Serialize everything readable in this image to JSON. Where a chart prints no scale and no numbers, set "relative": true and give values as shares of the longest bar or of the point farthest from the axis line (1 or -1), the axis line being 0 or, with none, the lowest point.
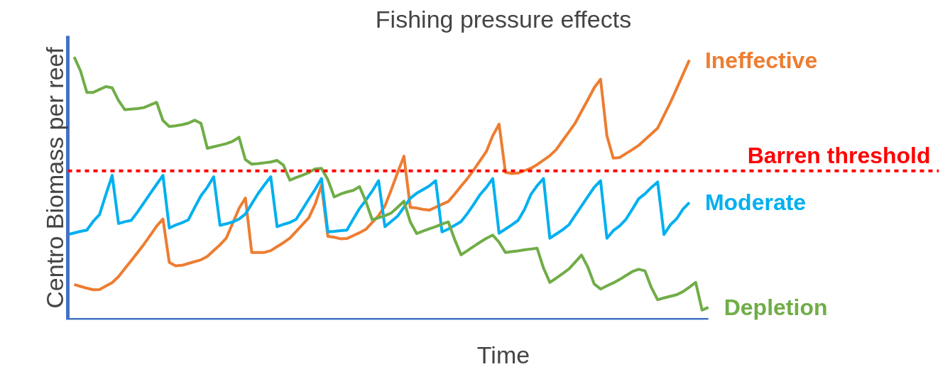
{
  "chart_data": {
    "type": "line",
    "title": "Fishing pressure effects",
    "xlabel": "Time",
    "ylabel": "Centro Biomass per reef",
    "relative": true,
    "categories": [
      null,
      null,
      null,
      null,
      null,
      null,
      null,
      null,
      null,
      null,
      null,
      null,
      null,
      null,
      null,
      null,
      null,
      null,
      null,
      null,
      null,
      null,
      null,
      null,
      null,
      null,
      null,
      null,
      null,
      null,
      null,
      null,
      null,
      null,
      null,
      null,
      null,
      null,
      null,
      null,
      null,
      null,
      null,
      null,
      null,
      null,
      null,
      null,
      null,
      null,
      null,
      null,
      null,
      null,
      null,
      null,
      null,
      null,
      null,
      null,
      null,
      null,
      null,
      null,
      null,
      null,
      null,
      null,
      null,
      null,
      null,
      null,
      null,
      null,
      null,
      null,
      null,
      null,
      null,
      null,
      null,
      null,
      null,
      null,
      null,
      null,
      null,
      null,
      null,
      null,
      null,
      null,
      null,
      null,
      null,
      null,
      null,
      null,
      null,
      null,
      null,
      null
    ],
    "grid": false,
    "marker": "none",
    "line_style": "solid",
    "ref_lines": [
      {
        "axis": "y",
        "value": 0.566,
        "label": "Barren threshold",
        "color": "#ff0000",
        "line_style": "dashed"
      }
    ],
    "series": [
      {
        "name": "Ineffective",
        "color": "#ed7d31",
        "values": [
          null,
          0.134,
          0.127,
          0.12,
          0.114,
          0.115,
          0.128,
          0.141,
          0.164,
          0.195,
          0.225,
          0.256,
          0.287,
          0.321,
          0.356,
          0.383,
          0.218,
          0.205,
          0.207,
          0.214,
          0.221,
          0.228,
          0.241,
          0.263,
          0.285,
          0.311,
          0.367,
          0.424,
          0.463,
          0.256,
          0.256,
          0.256,
          0.263,
          0.278,
          0.293,
          0.31,
          0.336,
          0.362,
          0.388,
          0.44,
          0.512,
          0.317,
          0.314,
          0.308,
          0.309,
          0.32,
          0.331,
          0.344,
          0.37,
          0.396,
          0.433,
          0.494,
          0.56,
          0.622,
          0.427,
          0.425,
          0.42,
          0.417,
          0.428,
          0.439,
          0.45,
          0.478,
          0.508,
          0.537,
          0.57,
          0.605,
          0.64,
          0.7,
          0.744,
          0.561,
          0.556,
          0.558,
          0.567,
          0.576,
          0.59,
          0.607,
          0.624,
          0.647,
          0.681,
          0.714,
          0.748,
          0.793,
          0.837,
          0.883,
          0.915,
          0.7,
          0.615,
          0.617,
          0.632,
          0.647,
          0.663,
          0.685,
          0.707,
          0.729,
          0.777,
          0.826,
          0.879,
          0.934,
          0.988,
          null,
          null,
          null
        ]
      },
      {
        "name": "Moderate",
        "color": "#00b0f0",
        "values": [
          0.324,
          0.33,
          0.336,
          0.341,
          0.374,
          0.4,
          0.476,
          0.549,
          0.366,
          0.373,
          0.378,
          0.41,
          0.445,
          0.48,
          0.515,
          0.549,
          0.349,
          0.36,
          0.369,
          0.38,
          0.427,
          0.472,
          0.504,
          0.544,
          0.359,
          0.365,
          0.372,
          0.383,
          0.402,
          0.441,
          0.48,
          0.513,
          0.544,
          0.354,
          0.363,
          0.37,
          0.382,
          0.42,
          0.459,
          0.496,
          0.537,
          0.334,
          0.336,
          0.339,
          0.341,
          0.383,
          0.423,
          0.455,
          0.49,
          0.529,
          0.354,
          0.374,
          0.394,
          0.428,
          0.462,
          0.481,
          0.495,
          0.509,
          0.529,
          0.334,
          0.345,
          0.359,
          0.373,
          0.404,
          0.439,
          0.476,
          0.504,
          0.537,
          0.329,
          0.345,
          0.361,
          0.378,
          0.419,
          0.476,
          0.51,
          0.537,
          0.31,
          0.326,
          0.342,
          0.361,
          0.397,
          0.433,
          0.469,
          0.504,
          0.529,
          0.31,
          0.339,
          0.357,
          0.382,
          0.42,
          0.46,
          0.479,
          0.503,
          0.524,
          0.324,
          0.361,
          0.384,
          0.421,
          0.446,
          null,
          null,
          null
        ]
      },
      {
        "name": "Depletion",
        "color": "#70ad47",
        "values": [
          null,
          1.0,
          0.947,
          0.865,
          0.865,
          0.876,
          0.887,
          0.882,
          0.834,
          0.799,
          0.801,
          0.803,
          0.807,
          0.817,
          0.827,
          0.758,
          0.735,
          0.738,
          0.742,
          0.748,
          0.759,
          0.747,
          0.652,
          0.658,
          0.664,
          0.67,
          0.679,
          0.694,
          0.609,
          0.592,
          0.594,
          0.597,
          0.6,
          0.606,
          0.588,
          0.531,
          0.541,
          0.55,
          0.56,
          0.574,
          0.576,
          0.533,
          0.467,
          0.478,
          0.486,
          0.492,
          0.506,
          0.45,
          0.38,
          0.388,
          0.396,
          0.406,
          0.428,
          0.451,
          0.372,
          0.328,
          0.337,
          0.346,
          0.354,
          0.364,
          0.372,
          0.305,
          0.247,
          0.263,
          0.279,
          0.295,
          0.31,
          0.322,
          0.295,
          0.256,
          0.259,
          0.262,
          0.266,
          0.269,
          0.272,
          0.197,
          0.142,
          0.158,
          0.175,
          0.193,
          0.219,
          0.246,
          0.2,
          0.136,
          0.117,
          0.129,
          0.14,
          0.153,
          0.168,
          0.183,
          0.192,
          0.186,
          0.123,
          0.076,
          0.083,
          0.089,
          0.095,
          0.107,
          0.124,
          0.142,
          0.037,
          0.047
        ]
      }
    ]
  }
}
